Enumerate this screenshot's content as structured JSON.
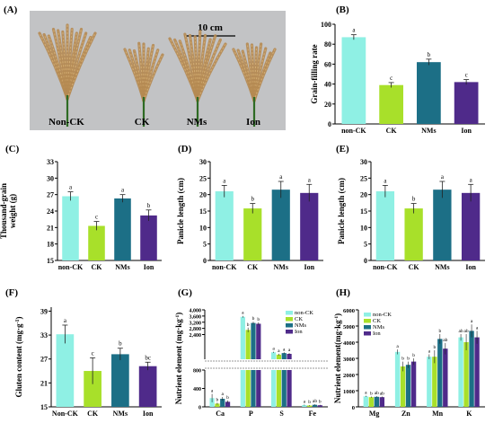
{
  "colors": {
    "non_ck": "#8ff0e4",
    "ck": "#a8e02a",
    "nms": "#1c6f86",
    "ion": "#4f2a8a",
    "photo_bg": "#c2c3c5",
    "panicle": "#b58a52",
    "stem": "#2e6b24"
  },
  "photo": {
    "letter": "(A)",
    "scale": "10 cm",
    "labels": [
      "Non-CK",
      "CK",
      "NMs",
      "Ion"
    ]
  },
  "chart_data": [
    {
      "id": "B",
      "letter": "(B)",
      "type": "bar",
      "categories": [
        "non-CK",
        "CK",
        "NMs",
        "Ion"
      ],
      "values": [
        87,
        39,
        62,
        42
      ],
      "errors": [
        2.5,
        2.5,
        3,
        2.5
      ],
      "sig": [
        "a",
        "c",
        "b",
        "c"
      ],
      "ylabel": "Grain-filling rate",
      "ylim": [
        0,
        100
      ],
      "yticks": [
        0,
        20,
        40,
        60,
        80,
        100
      ]
    },
    {
      "id": "C",
      "letter": "(C)",
      "type": "bar",
      "categories": [
        "non-CK",
        "CK",
        "NMs",
        "Ion"
      ],
      "values": [
        26.7,
        21.3,
        26.3,
        23.2
      ],
      "errors": [
        0.8,
        0.8,
        0.7,
        1.0
      ],
      "sig": [
        "a",
        "c",
        "a",
        "b"
      ],
      "ylabel": [
        "Thousand-grain",
        "weight (g)"
      ],
      "ylim": [
        15,
        33
      ],
      "yticks": [
        15,
        18,
        21,
        24,
        27,
        30,
        33
      ]
    },
    {
      "id": "D",
      "letter": "(D)",
      "type": "bar",
      "categories": [
        "non-CK",
        "CK",
        "NMs",
        "Ion"
      ],
      "values": [
        21,
        15.8,
        21.5,
        20.5
      ],
      "errors": [
        1.8,
        1.5,
        2.5,
        2.6
      ],
      "sig": [
        "a",
        "b",
        "a",
        "a"
      ],
      "ylabel": "Panicle length (cm)",
      "ylim": [
        0,
        30
      ],
      "yticks": [
        0,
        5,
        10,
        15,
        20,
        25,
        30
      ]
    },
    {
      "id": "E",
      "letter": "(E)",
      "type": "bar",
      "categories": [
        "non-CK",
        "CK",
        "NMs",
        "Ion"
      ],
      "values": [
        21,
        15.8,
        21.5,
        20.5
      ],
      "errors": [
        1.8,
        1.5,
        2.5,
        2.6
      ],
      "sig": [
        "a",
        "b",
        "a",
        "a"
      ],
      "ylabel": "Panicle length (cm)",
      "ylim": [
        0,
        30
      ],
      "yticks": [
        0,
        5,
        10,
        15,
        20,
        25,
        30
      ]
    },
    {
      "id": "F",
      "letter": "(F)",
      "type": "bar",
      "categories": [
        "Non-CK",
        "CK",
        "NMs",
        "Ion"
      ],
      "values": [
        33.2,
        24.0,
        28.2,
        25.2
      ],
      "errors": [
        2.3,
        3.3,
        1.5,
        1.0
      ],
      "sig": [
        "a",
        "c",
        "b",
        "bc"
      ],
      "ylabel": [
        "Gluten content (mg·g",
        "-1",
        ")"
      ],
      "ylim": [
        15,
        40
      ],
      "yticks": [
        15,
        21,
        27,
        33,
        39
      ]
    },
    {
      "id": "G",
      "letter": "(G)",
      "type": "bar",
      "categories": [
        "Ca",
        "P",
        "S",
        "Fe"
      ],
      "series": [
        {
          "name": "non-CK",
          "values": [
            190,
            3550,
            1250,
            40
          ],
          "errors": [
            90,
            60,
            40,
            10
          ]
        },
        {
          "name": "CK",
          "values": [
            70,
            2700,
            1100,
            30
          ],
          "errors": [
            20,
            150,
            60,
            8
          ]
        },
        {
          "name": "NMs",
          "values": [
            175,
            3150,
            1200,
            45
          ],
          "errors": [
            40,
            80,
            50,
            10
          ]
        },
        {
          "name": "Ion",
          "values": [
            110,
            3100,
            1150,
            35
          ],
          "errors": [
            30,
            90,
            50,
            10
          ]
        }
      ],
      "sig": [
        [
          "a",
          "b",
          "a",
          "b"
        ],
        [
          "a",
          "b",
          "b",
          "b"
        ],
        [
          "a",
          "a",
          "a",
          "a"
        ],
        [
          "a",
          "b",
          "ab",
          "b"
        ]
      ],
      "ylabel": [
        "Nutrient element (mg·kg",
        "-1",
        ")"
      ],
      "broken_axis": {
        "lower": [
          0,
          800
        ],
        "upper": [
          800,
          4000
        ]
      },
      "yticks_lower": [
        "0",
        "400",
        "800"
      ],
      "yticks_mid": [
        "800",
        "1,200",
        "1,600",
        "2,000"
      ],
      "yticks_upper": [
        "2,400",
        "2,800",
        "3,200"
      ],
      "yticks_top": [
        "3,600",
        "4,000"
      ],
      "legend": [
        "non-CK",
        "CK",
        "NMs",
        "Ion"
      ],
      "legend_pos": "top-right"
    },
    {
      "id": "H",
      "letter": "(H)",
      "type": "bar",
      "categories": [
        "Mg",
        "Zn",
        "Mn",
        "K"
      ],
      "series": [
        {
          "name": "non-CK",
          "values": [
            650,
            3400,
            3100,
            4300
          ],
          "errors": [
            40,
            150,
            150,
            200
          ]
        },
        {
          "name": "CK",
          "values": [
            600,
            2500,
            3100,
            4000
          ],
          "errors": [
            40,
            300,
            400,
            500
          ]
        },
        {
          "name": "NMs",
          "values": [
            620,
            2600,
            4200,
            4700
          ],
          "errors": [
            40,
            200,
            300,
            400
          ]
        },
        {
          "name": "Ion",
          "values": [
            600,
            2800,
            3600,
            4300
          ],
          "errors": [
            40,
            200,
            350,
            400
          ]
        }
      ],
      "sig": [
        [
          "a",
          "b",
          "ab",
          "ab"
        ],
        [
          "a",
          "b",
          "b",
          "b"
        ],
        [
          "a",
          "b",
          "b",
          "ab"
        ],
        [
          "ab",
          "ab",
          "a",
          "a"
        ]
      ],
      "ylabel": [
        "Nutrient element(mg·kg",
        "-1",
        ")"
      ],
      "ylim": [
        0,
        6000
      ],
      "yticks": [
        0,
        1000,
        2000,
        3000,
        4000,
        5000,
        6000
      ],
      "legend": [
        "non-CK",
        "CK",
        "NMs",
        "Ion"
      ],
      "legend_pos": "top-left"
    }
  ]
}
